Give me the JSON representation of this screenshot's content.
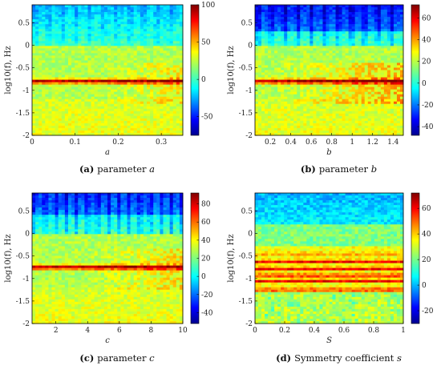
{
  "chart_data": [
    {
      "type": "heatmap",
      "panel": "a",
      "caption_prefix": "(a)",
      "caption_text": "parameter ",
      "caption_var": "a",
      "xlabel": "a",
      "ylabel": "log10(f), Hz",
      "xlim": [
        0,
        0.35
      ],
      "ylim": [
        -2,
        0.9
      ],
      "xticks": [
        0,
        0.1,
        0.2,
        0.3
      ],
      "xtick_labels": [
        "0",
        "0.1",
        "0.2",
        "0.3"
      ],
      "yticks": [
        -2,
        -1.5,
        -1,
        -0.5,
        0,
        0.5
      ],
      "ytick_labels": [
        "-2",
        "-1.5",
        "-1",
        "-0.5",
        "0",
        "0.5"
      ],
      "colorbar_range": [
        -75,
        100
      ],
      "colorbar_ticks": [
        -50,
        0,
        50,
        100
      ],
      "colorbar_tick_labels": [
        "-50",
        "0",
        "50",
        "100"
      ],
      "dominant_band_log10f": -0.8
    },
    {
      "type": "heatmap",
      "panel": "b",
      "caption_prefix": "(b)",
      "caption_text": "parameter ",
      "caption_var": "b",
      "xlabel": "b",
      "ylabel": "log10(f), Hz",
      "xlim": [
        0.05,
        1.5
      ],
      "ylim": [
        -2,
        0.9
      ],
      "xticks": [
        0.2,
        0.4,
        0.6,
        0.8,
        1,
        1.2,
        1.4
      ],
      "xtick_labels": [
        "0.2",
        "0.4",
        "0.6",
        "0.8",
        "1",
        "1.2",
        "1.4"
      ],
      "yticks": [
        -2,
        -1.5,
        -1,
        -0.5,
        0,
        0.5
      ],
      "ytick_labels": [
        "-2",
        "-1.5",
        "-1",
        "-0.5",
        "0",
        "0.5"
      ],
      "colorbar_range": [
        -48,
        72
      ],
      "colorbar_ticks": [
        -40,
        -20,
        0,
        20,
        40,
        60
      ],
      "colorbar_tick_labels": [
        "-40",
        "-20",
        "0",
        "20",
        "40",
        "60"
      ],
      "dominant_band_log10f": -0.8
    },
    {
      "type": "heatmap",
      "panel": "c",
      "caption_prefix": "(c)",
      "caption_text": "parameter ",
      "caption_var": "c",
      "xlabel": "c",
      "ylabel": "log10(f), Hz",
      "xlim": [
        0.5,
        10
      ],
      "ylim": [
        -2,
        0.9
      ],
      "xticks": [
        2,
        4,
        6,
        8,
        10
      ],
      "xtick_labels": [
        "2",
        "4",
        "6",
        "8",
        "10"
      ],
      "yticks": [
        -2,
        -1.5,
        -1,
        -0.5,
        0,
        0.5
      ],
      "ytick_labels": [
        "-2",
        "-1.5",
        "-1",
        "-0.5",
        "0",
        "0.5"
      ],
      "colorbar_range": [
        -52,
        92
      ],
      "colorbar_ticks": [
        -40,
        -20,
        0,
        20,
        40,
        60,
        80
      ],
      "colorbar_tick_labels": [
        "-40",
        "-20",
        "0",
        "20",
        "40",
        "60",
        "80"
      ],
      "dominant_band_log10f": -0.75
    },
    {
      "type": "heatmap",
      "panel": "d",
      "caption_prefix": "(d)",
      "caption_text": "Symmetry coefficient ",
      "caption_var": "s",
      "xlabel": "S",
      "ylabel": "log10(f), Hz",
      "xlim": [
        0,
        1
      ],
      "ylim": [
        -2,
        0.9
      ],
      "xticks": [
        0,
        0.2,
        0.4,
        0.6,
        0.8,
        1
      ],
      "xtick_labels": [
        "0",
        "0.2",
        "0.4",
        "0.6",
        "0.8",
        "1"
      ],
      "yticks": [
        -2,
        -1.5,
        -1,
        -0.5,
        0,
        0.5
      ],
      "ytick_labels": [
        "-2",
        "-1.5",
        "-1",
        "-0.5",
        "0",
        "0.5"
      ],
      "colorbar_range": [
        -30,
        72
      ],
      "colorbar_ticks": [
        -20,
        0,
        20,
        40,
        60
      ],
      "colorbar_tick_labels": [
        "-20",
        "0",
        "20",
        "40",
        "60"
      ],
      "dominant_band_log10f": -0.65
    }
  ]
}
